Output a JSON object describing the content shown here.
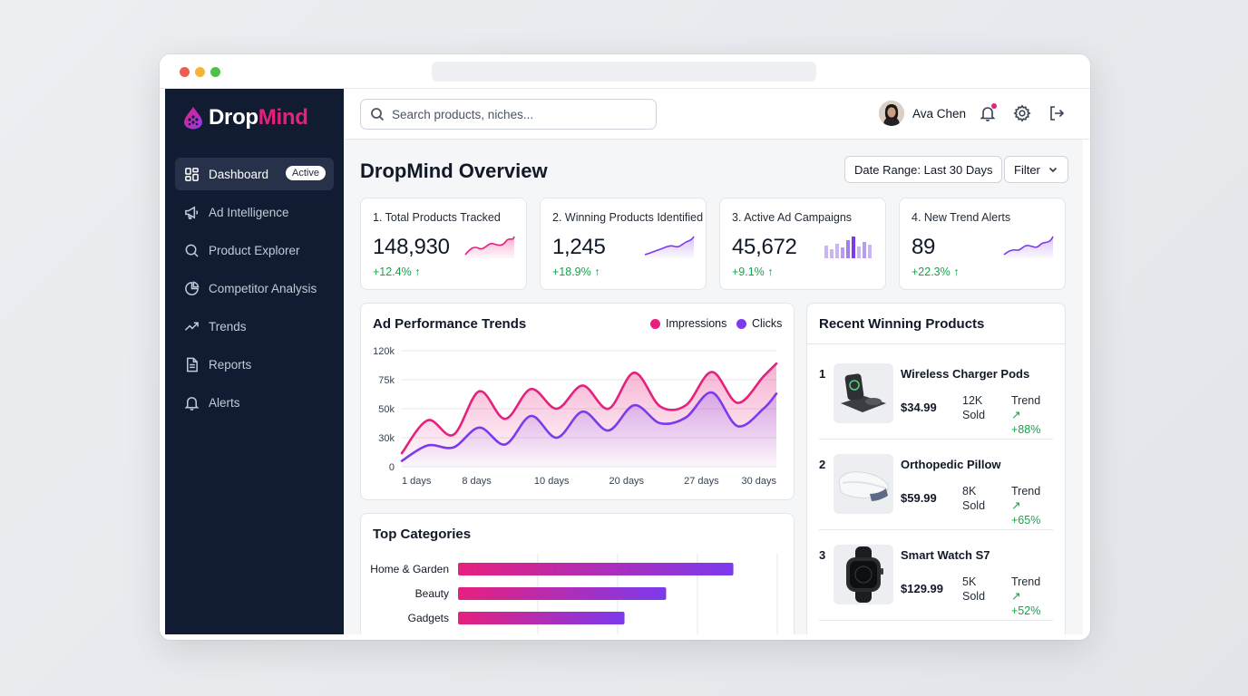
{
  "app": {
    "brand_part1": "Drop",
    "brand_part2": "Mind"
  },
  "sidebar": {
    "items": [
      {
        "label": "Dashboard",
        "badge": "Active",
        "icon": "grid-icon"
      },
      {
        "label": "Ad Intelligence",
        "icon": "megaphone-icon"
      },
      {
        "label": "Product Explorer",
        "icon": "search-icon"
      },
      {
        "label": "Competitor Analysis",
        "icon": "pie-chart-icon"
      },
      {
        "label": "Trends",
        "icon": "trending-up-icon"
      },
      {
        "label": "Reports",
        "icon": "document-icon"
      },
      {
        "label": "Alerts",
        "icon": "bell-icon"
      }
    ]
  },
  "topbar": {
    "search_placeholder": "Search products, niches...",
    "user_name": "Ava Chen"
  },
  "page": {
    "title": "DropMind Overview",
    "date_range": "Date Range: Last 30 Days",
    "filter": "Filter"
  },
  "kpis": [
    {
      "label": "1. Total Products Tracked",
      "value": "148,930",
      "delta": "+12.4% ↑",
      "spark": "area"
    },
    {
      "label": "2. Winning Products Identified",
      "value": "1,245",
      "delta": "+18.9% ↑",
      "spark": "area"
    },
    {
      "label": "3. Active Ad Campaigns",
      "value": "45,672",
      "delta": "+9.1% ↑",
      "spark": "bars"
    },
    {
      "label": "4. New Trend Alerts",
      "value": "89",
      "delta": "+22.3% ↑",
      "spark": "area"
    }
  ],
  "ad_chart": {
    "title": "Ad Performance Trends",
    "legend_impressions": "Impressions",
    "legend_clicks": "Clicks"
  },
  "categories_card": {
    "title": "Top Categories"
  },
  "recent": {
    "title": "Recent Winning Products",
    "items": [
      {
        "rank": "1",
        "name": "Wireless Charger Pods",
        "price": "$34.99",
        "sold_value": "12K",
        "sold_label": "Sold",
        "trend_label": "Trend",
        "trend_value": "↗ +88%"
      },
      {
        "rank": "2",
        "name": "Orthopedic Pillow",
        "price": "$59.99",
        "sold_value": "8K",
        "sold_label": "Sold",
        "trend_label": "Trend",
        "trend_value": "↗ +65%"
      },
      {
        "rank": "3",
        "name": "Smart Watch S7",
        "price": "$129.99",
        "sold_value": "5K",
        "sold_label": "Sold",
        "trend_label": "Trend",
        "trend_value": "↗ +52%"
      }
    ]
  },
  "colors": {
    "accent_pink": "#e6207d",
    "accent_purple": "#7c3aed",
    "sidebar_bg": "#111c33",
    "positive": "#16a34a"
  },
  "chart_data": [
    {
      "type": "line",
      "title": "Ad Performance Trends",
      "x_tick_labels": [
        "1 days",
        "8 days",
        "10 days",
        "20 days",
        "27 days",
        "30 days"
      ],
      "y_tick_labels": [
        "0",
        "30k",
        "50k",
        "75k",
        "120k"
      ],
      "y_ticks": [
        0,
        30000,
        50000,
        75000,
        120000
      ],
      "x": [
        1,
        3,
        5,
        7,
        9,
        11,
        13,
        15,
        17,
        19,
        21,
        23,
        25,
        27,
        29,
        30
      ],
      "series": [
        {
          "name": "Impressions",
          "color": "#e6207d",
          "values": [
            14000,
            42000,
            32000,
            65000,
            43000,
            67000,
            50000,
            70000,
            50000,
            86000,
            52000,
            53000,
            87000,
            55000,
            80000,
            100000
          ]
        },
        {
          "name": "Clicks",
          "color": "#7c3aed",
          "values": [
            6000,
            22000,
            20000,
            37000,
            23000,
            45000,
            30000,
            48000,
            35000,
            53000,
            40000,
            44000,
            64000,
            38000,
            50000,
            63000
          ]
        }
      ],
      "legend": "top-right",
      "grid": true
    },
    {
      "type": "bar",
      "orientation": "horizontal",
      "title": "Top Categories",
      "categories": [
        "Home & Garden",
        "Beauty",
        "Gadgets"
      ],
      "values": [
        86,
        65,
        52
      ],
      "xlim": [
        0,
        100
      ]
    }
  ]
}
